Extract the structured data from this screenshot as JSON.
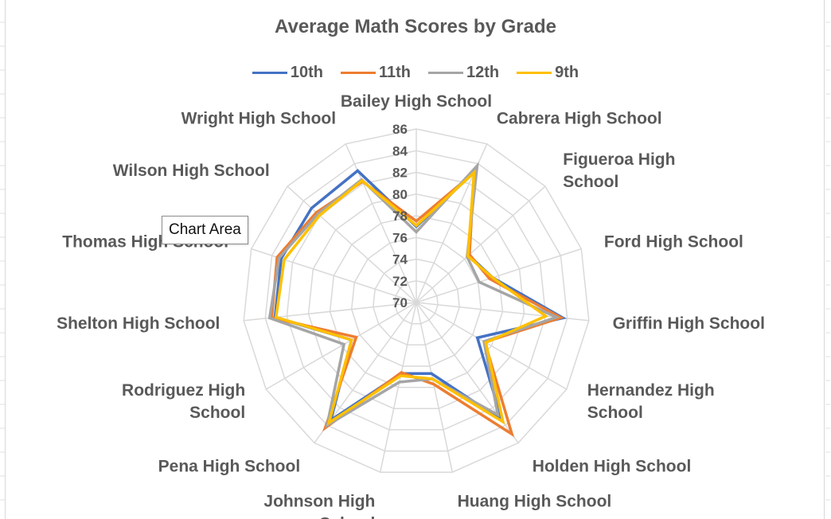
{
  "tooltip": {
    "text": "Chart Area"
  },
  "chart_data": {
    "type": "radar",
    "title": "Average Math Scores by Grade",
    "rlim": [
      70,
      86
    ],
    "ticks": [
      70,
      72,
      74,
      76,
      78,
      80,
      82,
      84,
      86
    ],
    "grid": true,
    "legend_position": "top",
    "categories": [
      [
        "Bailey High School"
      ],
      [
        "Cabrera High School"
      ],
      [
        "Figueroa High",
        "School"
      ],
      [
        "Ford High School"
      ],
      [
        "Griffin High School"
      ],
      [
        "Hernandez High",
        "School"
      ],
      [
        "Holden High School"
      ],
      [
        "Huang High School"
      ],
      [
        "Johnson High",
        "School"
      ],
      [
        "Pena High School"
      ],
      [
        "Rodriguez High",
        "School"
      ],
      [
        "Shelton High School"
      ],
      [
        "Thomas High School"
      ],
      [
        "Wilson High School"
      ],
      [
        "Wright High School"
      ]
    ],
    "series": [
      {
        "name": "10th",
        "color": "#4472C4",
        "values": [
          77.0,
          83.2,
          76.5,
          77.4,
          83.6,
          76.5,
          83.4,
          76.7,
          76.7,
          83.4,
          76.9,
          83.1,
          83.1,
          83.0,
          83.3
        ]
      },
      {
        "name": "11th",
        "color": "#ED7D31",
        "values": [
          77.5,
          83.1,
          76.6,
          77.1,
          83.4,
          77.3,
          85.0,
          77.7,
          76.6,
          84.3,
          76.4,
          83.4,
          83.5,
          82.4,
          82.2
        ]
      },
      {
        "name": "12th",
        "color": "#A5A5A5",
        "values": [
          76.5,
          83.8,
          76.3,
          76.1,
          83.0,
          77.2,
          82.8,
          77.2,
          77.5,
          84.0,
          77.7,
          83.6,
          83.3,
          82.2,
          82.4
        ]
      },
      {
        "name": "9th",
        "color": "#FFC000",
        "values": [
          77.1,
          83.1,
          76.4,
          77.4,
          82.0,
          77.4,
          83.6,
          77.2,
          76.9,
          83.7,
          76.9,
          83.0,
          82.8,
          82.0,
          82.3
        ]
      }
    ]
  }
}
